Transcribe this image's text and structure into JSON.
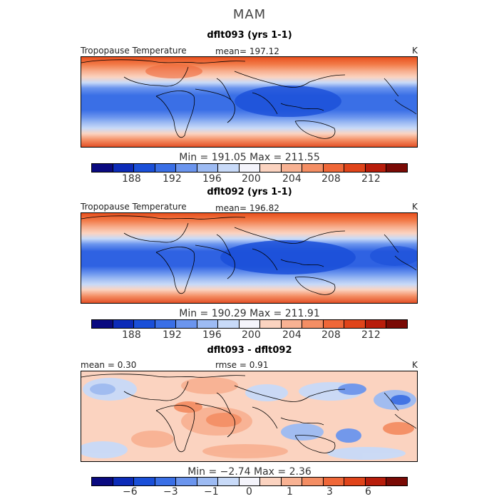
{
  "season": "MAM",
  "panels": [
    {
      "title": "dflt093 (yrs 1-1)",
      "left_label": "Tropopause Temperature",
      "center_label": "mean= 197.12",
      "unit": "K",
      "minmax": "Min = 191.05 Max = 211.55",
      "ticks": [
        "188",
        "192",
        "196",
        "200",
        "204",
        "208",
        "212"
      ]
    },
    {
      "title": "dflt092 (yrs 1-1)",
      "left_label": "Tropopause Temperature",
      "center_label": "mean= 196.82",
      "unit": "K",
      "minmax": "Min = 190.29 Max = 211.91",
      "ticks": [
        "188",
        "192",
        "196",
        "200",
        "204",
        "208",
        "212"
      ]
    },
    {
      "title": "dflt093 - dflt092",
      "left_label": "mean = 0.30",
      "center_label": "rmse = 0.91",
      "unit": "K",
      "minmax": "Min = −2.74 Max = 2.36",
      "ticks": [
        "−6",
        "−3",
        "−1",
        "0",
        "1",
        "3",
        "6"
      ]
    }
  ],
  "colors": {
    "palette": [
      "#0a0a80",
      "#0c2bb8",
      "#1a4fd8",
      "#3a6fe6",
      "#6b95ee",
      "#9dbbf3",
      "#c8daf8",
      "#f4f4fb",
      "#fbd3c0",
      "#f8b293",
      "#f48e64",
      "#ef6738",
      "#e0441a",
      "#b81d0b",
      "#7a0a05"
    ],
    "coastline": "#000000"
  }
}
